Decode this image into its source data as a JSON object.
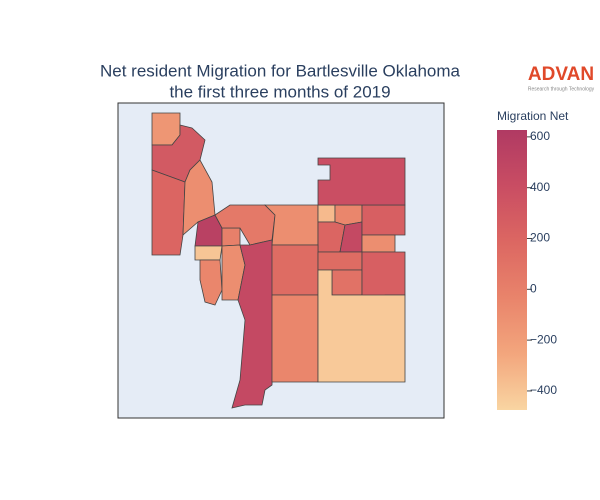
{
  "chart_data": {
    "type": "choropleth",
    "title": "Net resident Migration for Bartlesville Oklahoma",
    "subtitle": "the first three months of 2019",
    "logo": {
      "text": "ADVAN",
      "tagline": "Research through Technology"
    },
    "colorbar_title": "Migration Net",
    "values": [
      -150,
      300,
      200,
      -100,
      550,
      0,
      -400,
      -50,
      -100,
      50,
      450,
      -100,
      -350,
      -50,
      200,
      450,
      250,
      -100,
      150,
      150,
      100,
      250,
      -50,
      -420,
      400
    ],
    "ylim": [
      -475,
      627
    ],
    "yticks": [
      {
        "value": -400,
        "label": "−400"
      },
      {
        "value": -200,
        "label": "−200"
      },
      0,
      200,
      400,
      600
    ],
    "colorscale": [
      "#f9d5a2",
      "#f3a67d",
      "#e9846b",
      "#dc6762",
      "#c94d63",
      "#b03a63"
    ]
  }
}
